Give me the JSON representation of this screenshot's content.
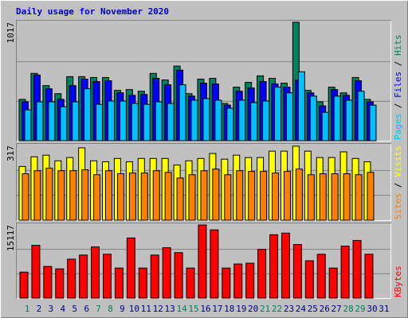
{
  "title": "Daily usage for November 2020",
  "categories": [
    "1",
    "2",
    "3",
    "4",
    "5",
    "6",
    "7",
    "8",
    "9",
    "10",
    "11",
    "12",
    "13",
    "14",
    "15",
    "16",
    "17",
    "18",
    "19",
    "20",
    "21",
    "22",
    "23",
    "24",
    "25",
    "26",
    "27",
    "28",
    "29",
    "30",
    "31"
  ],
  "category_colors": [
    "#00805c",
    "#000080",
    "#000080",
    "#000080",
    "#000080",
    "#000080",
    "#00805c",
    "#00805c",
    "#000080",
    "#000080",
    "#000080",
    "#000080",
    "#000080",
    "#00805c",
    "#00805c",
    "#000080",
    "#000080",
    "#000080",
    "#000080",
    "#000080",
    "#00805c",
    "#00805c",
    "#000080",
    "#000080",
    "#000080",
    "#000080",
    "#000080",
    "#00805c",
    "#00805c",
    "#000080",
    "#000080"
  ],
  "legend_separator": " / ",
  "chart_data": [
    {
      "type": "bar",
      "ylim": [
        0,
        1017
      ],
      "yticks": [
        1017
      ],
      "grid": true,
      "series": [
        {
          "name": "Hits",
          "color": "#00805c",
          "values": [
            355,
            578,
            473,
            404,
            550,
            550,
            543,
            543,
            432,
            439,
            425,
            578,
            522,
            641,
            404,
            529,
            536,
            320,
            460,
            501,
            557,
            536,
            494,
            1017,
            432,
            334,
            460,
            411,
            543,
            355,
            0
          ]
        },
        {
          "name": "Files",
          "color": "#0000ff",
          "values": [
            334,
            564,
            446,
            355,
            473,
            529,
            508,
            515,
            411,
            390,
            397,
            536,
            480,
            606,
            383,
            494,
            487,
            306,
            425,
            453,
            508,
            487,
            460,
            522,
            411,
            299,
            439,
            390,
            515,
            334,
            0
          ]
        },
        {
          "name": "Pages",
          "color": "#00c0ff",
          "values": [
            265,
            334,
            334,
            292,
            334,
            446,
            313,
            341,
            341,
            320,
            313,
            334,
            320,
            480,
            348,
            362,
            348,
            279,
            348,
            327,
            341,
            460,
            411,
            592,
            383,
            244,
            383,
            348,
            425,
            306,
            0
          ]
        }
      ]
    },
    {
      "type": "bar",
      "ylim": [
        0,
        317
      ],
      "yticks": [
        317
      ],
      "grid": true,
      "series": [
        {
          "name": "Visits",
          "color": "#ffff00",
          "values": [
            228,
            269,
            276,
            252,
            266,
            307,
            252,
            248,
            262,
            248,
            262,
            262,
            262,
            234,
            252,
            262,
            283,
            259,
            276,
            266,
            266,
            293,
            293,
            314,
            293,
            266,
            266,
            290,
            262,
            248,
            0
          ]
        },
        {
          "name": "Sites",
          "color": "#ff8000",
          "values": [
            197,
            210,
            221,
            210,
            210,
            214,
            193,
            210,
            197,
            200,
            200,
            210,
            203,
            179,
            193,
            210,
            217,
            193,
            210,
            207,
            207,
            200,
            207,
            217,
            193,
            197,
            197,
            197,
            193,
            203,
            0
          ]
        }
      ]
    },
    {
      "type": "bar",
      "ylim": [
        0,
        15117
      ],
      "yticks": [
        15117
      ],
      "grid": true,
      "series": [
        {
          "name": "KBytes",
          "color": "#ff0000",
          "values": [
            5375,
            10918,
            6551,
            6047,
            8062,
            8902,
            10582,
            9070,
            6215,
            12429,
            6215,
            8902,
            10414,
            9406,
            6215,
            15117,
            14109,
            6215,
            7055,
            7222,
            10078,
            13101,
            13437,
            11086,
            7726,
            9070,
            6215,
            10750,
            11926,
            9070,
            0
          ]
        }
      ]
    }
  ]
}
